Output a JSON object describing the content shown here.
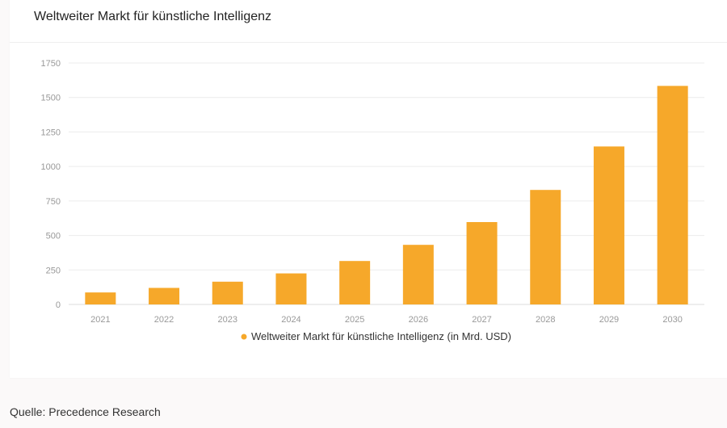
{
  "card": {
    "title": "Weltweiter Markt für künstliche Intelligenz"
  },
  "source": "Quelle: Precedence Research",
  "colors": {
    "bar": "#f6a82a",
    "grid": "#ececec",
    "axis": "#dddddd",
    "tick_text": "#999999",
    "legend_text": "#333333"
  },
  "chart_data": {
    "type": "bar",
    "categories": [
      "2021",
      "2022",
      "2023",
      "2024",
      "2025",
      "2026",
      "2027",
      "2028",
      "2029",
      "2030"
    ],
    "series": [
      {
        "name": "Weltweiter Markt für künstliche Intelligenz (in Mrd. USD)",
        "values": [
          87,
          120,
          165,
          225,
          315,
          432,
          597,
          830,
          1145,
          1584
        ]
      }
    ],
    "title": "",
    "xlabel": "",
    "ylabel": "",
    "ylim": [
      0,
      1750
    ],
    "yticks": [
      "0",
      "250",
      "500",
      "750",
      "1000",
      "1250",
      "1500",
      "1750"
    ],
    "grid": true,
    "legend": "bottom-center"
  }
}
